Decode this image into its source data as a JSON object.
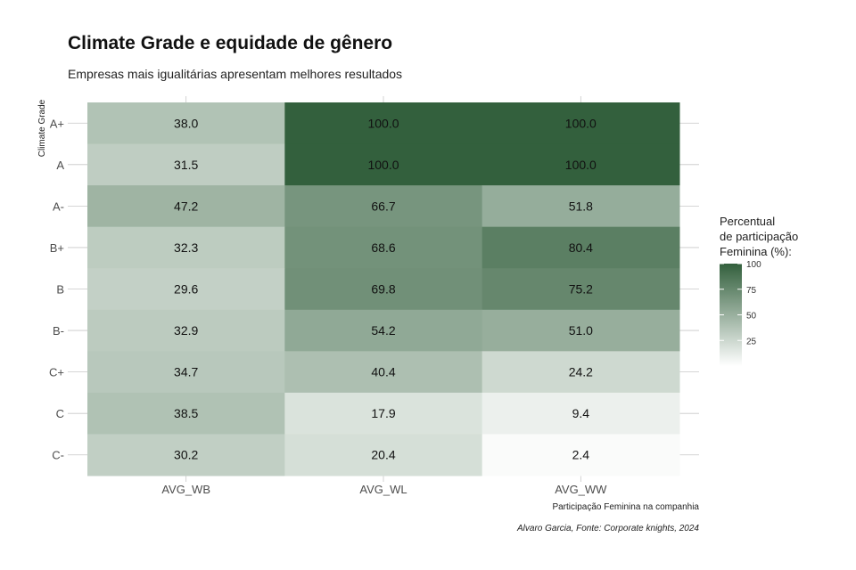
{
  "title": "Climate Grade e equidade de gênero",
  "subtitle": "Empresas mais igualitárias apresentam melhores resultados",
  "caption": "Alvaro Garcia, Fonte: Corporate knights, 2024",
  "colors": {
    "low": "#ffffff",
    "high": "#33603d",
    "text": "#111111",
    "grid": "#c8c8c8"
  },
  "chart_data": {
    "type": "heatmap",
    "xlabel": "Participação Feminina na companhia",
    "ylabel": "Climate Grade",
    "x_categories": [
      "AVG_WB",
      "AVG_WL",
      "AVG_WW"
    ],
    "y_categories": [
      "A+",
      "A",
      "A-",
      "B+",
      "B",
      "B-",
      "C+",
      "C",
      "C-"
    ],
    "values": [
      [
        38.0,
        100.0,
        100.0
      ],
      [
        31.5,
        100.0,
        100.0
      ],
      [
        47.2,
        66.7,
        51.8
      ],
      [
        32.3,
        68.6,
        80.4
      ],
      [
        29.6,
        69.8,
        75.2
      ],
      [
        32.9,
        54.2,
        51.0
      ],
      [
        34.7,
        40.4,
        24.2
      ],
      [
        38.5,
        17.9,
        9.4
      ],
      [
        30.2,
        20.4,
        2.4
      ]
    ],
    "labels": [
      [
        "38.0",
        "100.0",
        "100.0"
      ],
      [
        "31.5",
        "100.0",
        "100.0"
      ],
      [
        "47.2",
        "66.7",
        "51.8"
      ],
      [
        "32.3",
        "68.6",
        "80.4"
      ],
      [
        "29.6",
        "69.8",
        "75.2"
      ],
      [
        "32.9",
        "54.2",
        "51.0"
      ],
      [
        "34.7",
        "40.4",
        "24.2"
      ],
      [
        "38.5",
        "17.9",
        "9.4"
      ],
      [
        "30.2",
        "20.4",
        "2.4"
      ]
    ],
    "value_range": [
      0,
      100
    ],
    "grid": true,
    "legend": {
      "title_lines": [
        "Percentual",
        "de participação",
        "Feminina (%):"
      ],
      "ticks": [
        25,
        50,
        75,
        100
      ],
      "position": "right"
    }
  }
}
